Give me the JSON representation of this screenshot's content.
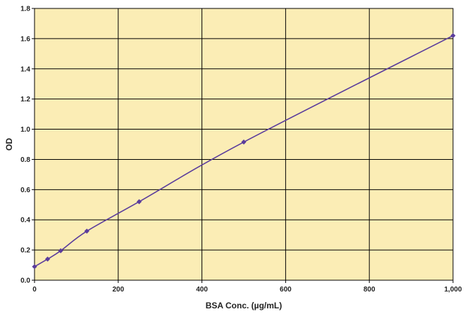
{
  "chart_data": {
    "type": "line",
    "title": "",
    "xlabel": "BSA Conc. (µg/mL)",
    "ylabel": "OD",
    "xlim": [
      0,
      1000
    ],
    "ylim": [
      0,
      1.8
    ],
    "x_ticks": [
      0,
      200,
      400,
      600,
      800,
      1000
    ],
    "x_tick_labels": [
      "0",
      "200",
      "400",
      "600",
      "800",
      "1,000"
    ],
    "y_ticks": [
      0,
      0.2,
      0.4,
      0.6,
      0.8,
      1.0,
      1.2,
      1.4,
      1.6,
      1.8
    ],
    "y_tick_labels": [
      "0.0",
      "0.2",
      "0.4",
      "0.6",
      "0.8",
      "1.0",
      "1.2",
      "1.4",
      "1.6",
      "1.8"
    ],
    "grid": true,
    "legend": "none",
    "colors": {
      "plot_background": "#FBEDB5",
      "series": "#5A3C9C",
      "grid": "#000000"
    },
    "series": [
      {
        "x": [
          0,
          31.25,
          62.5,
          125,
          250,
          500,
          1000
        ],
        "y": [
          0.09,
          0.14,
          0.195,
          0.325,
          0.52,
          0.915,
          1.62
        ]
      }
    ]
  }
}
